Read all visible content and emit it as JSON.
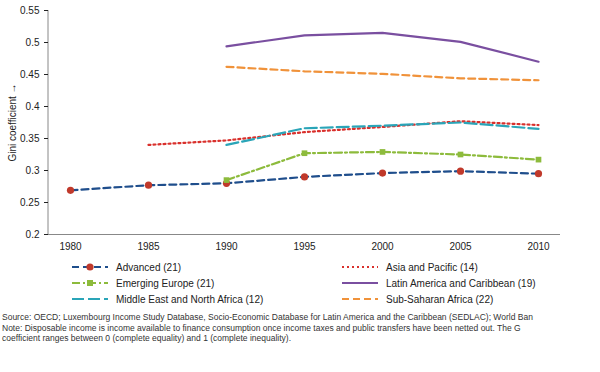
{
  "chart_data": {
    "type": "line",
    "y_label": "Gini coefficient",
    "categories": [
      "1980",
      "1985",
      "1990",
      "1995",
      "2000",
      "2005",
      "2010"
    ],
    "ylim": [
      0.2,
      0.55
    ],
    "yticks": [
      0.2,
      0.25,
      0.3,
      0.35,
      0.4,
      0.45,
      0.5,
      0.55
    ],
    "grid": false,
    "legend": "bottom",
    "series": [
      {
        "name": "Advanced (21)",
        "color": "#1f4e8c",
        "line_style": "dashed",
        "marker": "circle",
        "values": [
          0.269,
          0.277,
          0.28,
          0.29,
          0.296,
          0.299,
          0.295
        ]
      },
      {
        "name": "Asia and Pacific (14)",
        "color": "#d9302c",
        "line_style": "dotted",
        "values": [
          null,
          0.34,
          0.347,
          0.36,
          0.368,
          0.377,
          0.371
        ]
      },
      {
        "name": "Emerging Europe (21)",
        "color": "#8dbb3c",
        "line_style": "dashdot",
        "marker": "square",
        "values": [
          null,
          null,
          0.285,
          0.327,
          0.329,
          0.325,
          0.317
        ]
      },
      {
        "name": "Latin America and Caribbean (19)",
        "color": "#7a4fa0",
        "line_style": "solid",
        "values": [
          null,
          null,
          0.494,
          0.511,
          0.515,
          0.501,
          0.47
        ]
      },
      {
        "name": "Middle East and North Africa (12)",
        "color": "#2aa5b8",
        "line_style": "longdash",
        "values": [
          null,
          null,
          0.34,
          0.366,
          0.37,
          0.375,
          0.365
        ]
      },
      {
        "name": "Sub-Saharan Africa (22)",
        "color": "#f0923a",
        "line_style": "dashed",
        "values": [
          null,
          null,
          0.462,
          0.455,
          0.451,
          0.444,
          0.441
        ]
      }
    ],
    "notes": [
      "Source: OECD; Luxembourg Income Study Database, Socio-Economic Database for Latin America and the Caribbean (SEDLAC); World Ban",
      "Note: Disposable income is income available to finance consumption once income taxes and public transfers have been netted out. The G",
      "coefficient ranges between 0 (complete equality) and 1 (complete inequality)."
    ]
  }
}
